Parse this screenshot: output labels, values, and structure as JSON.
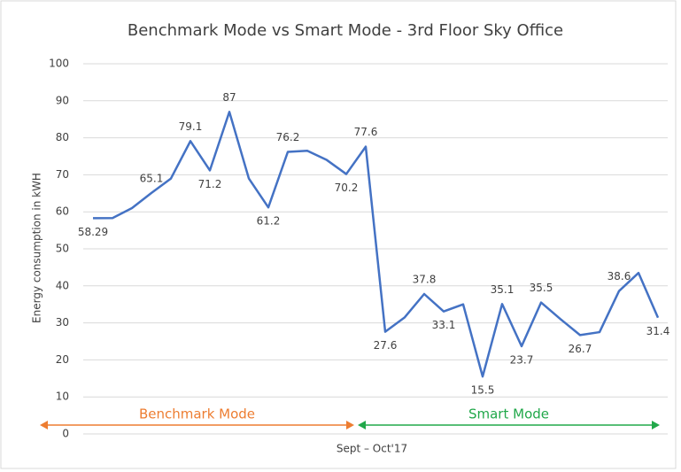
{
  "chart_data": {
    "type": "line",
    "title": "Benchmark Mode vs Smart Mode - 3rd Floor Sky Office",
    "y_label": "Energy consumption in kWH",
    "x_label": "Sept – Oct'17",
    "categories": [
      null,
      null,
      null,
      null,
      null,
      null,
      null,
      null,
      null,
      null,
      null,
      null,
      null,
      null,
      null,
      null,
      null,
      null,
      null,
      null,
      null,
      null,
      null,
      null,
      null,
      null,
      null,
      null,
      null,
      null
    ],
    "series": [
      {
        "name": "Energy consumption",
        "color": "#4472c4",
        "values": [
          58.29,
          58.3,
          61,
          65.1,
          69,
          79.1,
          71.2,
          87,
          69,
          61.2,
          76.2,
          76.5,
          74,
          70.2,
          77.6,
          27.6,
          31.5,
          37.8,
          33.1,
          35,
          15.5,
          35.1,
          23.7,
          35.5,
          31,
          26.7,
          27.5,
          38.6,
          43.5,
          31.4
        ],
        "value_labels": [
          "58.29",
          null,
          null,
          "65.1",
          null,
          "79.1",
          "71.2",
          "87",
          null,
          "61.2",
          "76.2",
          null,
          null,
          "70.2",
          "77.6",
          "27.6",
          null,
          "37.8",
          "33.1",
          null,
          "15.5",
          "35.1",
          "23.7",
          "35.5",
          null,
          "26.7",
          null,
          "38.6",
          null,
          "31.4"
        ]
      }
    ],
    "ylim": [
      0,
      100
    ],
    "yticks": [
      0,
      10,
      20,
      30,
      40,
      50,
      60,
      70,
      80,
      90,
      100
    ],
    "grid": true,
    "annotations": [
      {
        "text": "Benchmark Mode",
        "color": "#ed7d31"
      },
      {
        "text": "Smart Mode",
        "color": "#21a84a"
      }
    ]
  }
}
